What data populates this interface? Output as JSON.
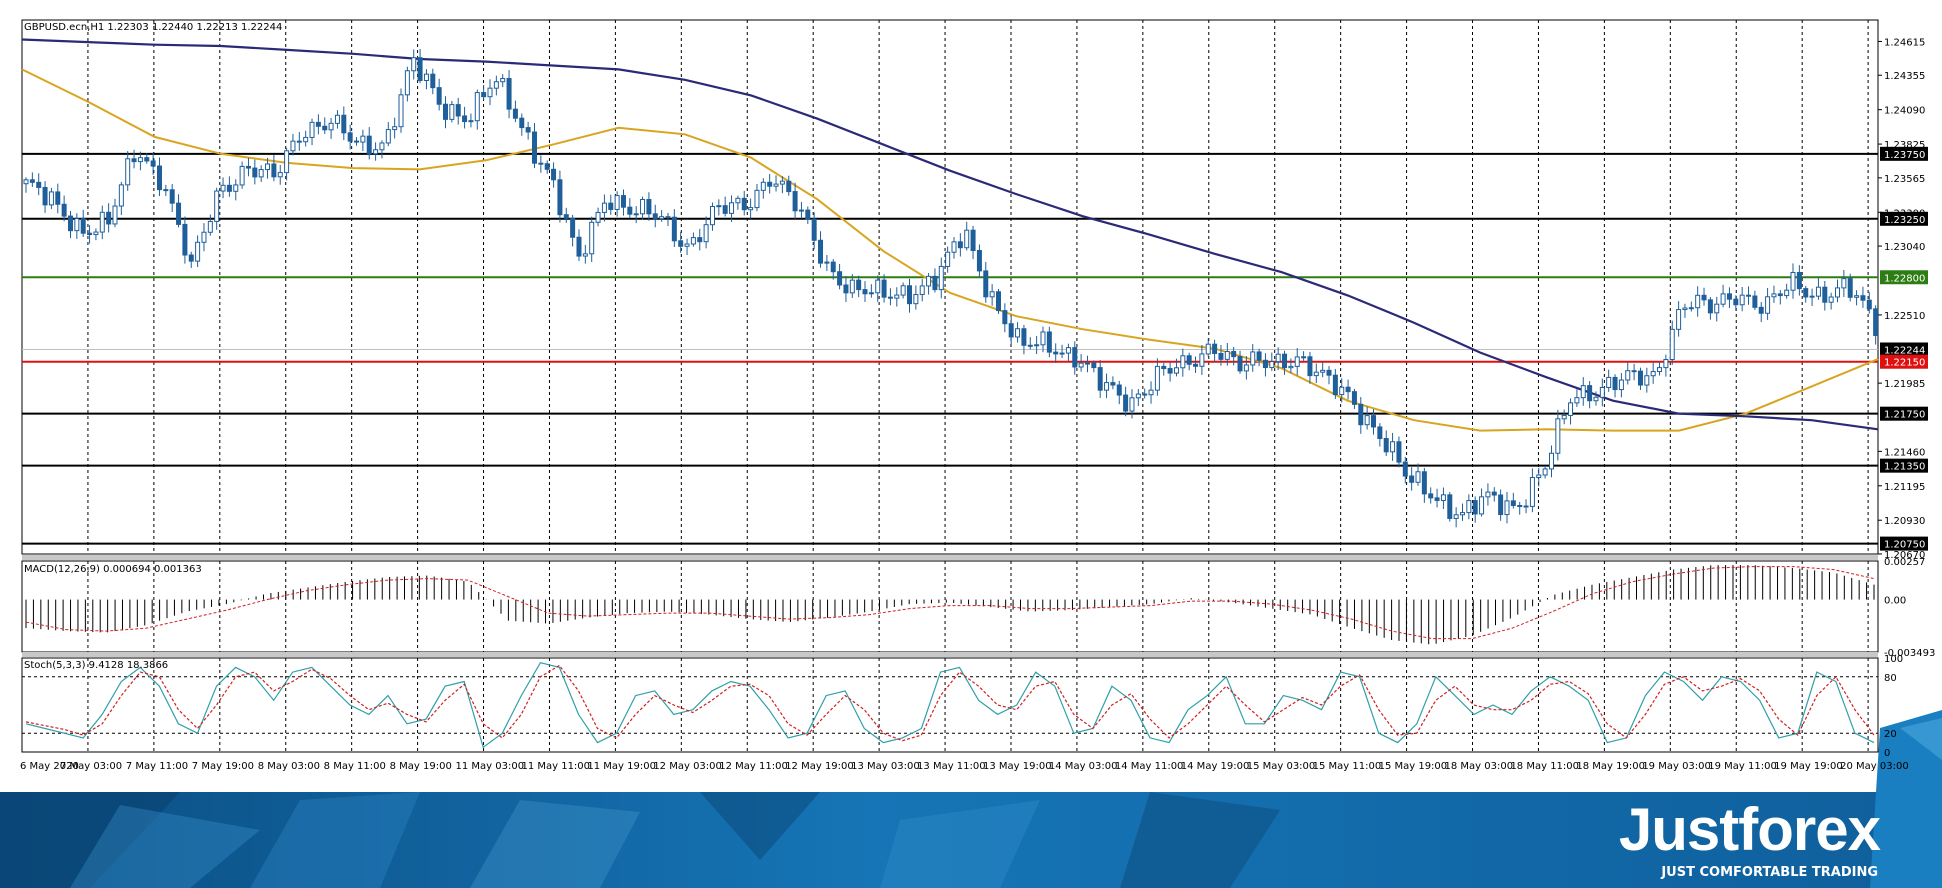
{
  "chart_data": [
    {
      "panel": "price",
      "type": "candlestick",
      "title": "GBPUSD.ecn,H1",
      "ohlc_header": [
        "1.22303",
        "1.22440",
        "1.22213",
        "1.22244"
      ],
      "ylim": [
        1.2067,
        1.2478
      ],
      "y_ticks": [
        "1.24615",
        "1.24355",
        "1.24090",
        "1.23825",
        "1.23565",
        "1.23300",
        "1.23040",
        "1.22510",
        "1.21985",
        "1.21460",
        "1.21195",
        "1.20930",
        "1.20670"
      ],
      "levels": [
        {
          "label": "1.23750",
          "value": 1.2375,
          "color": "#000000"
        },
        {
          "label": "1.23250",
          "value": 1.2325,
          "color": "#000000"
        },
        {
          "label": "1.22800",
          "value": 1.228,
          "color": "#2e7d14"
        },
        {
          "label": "1.22150",
          "value": 1.2215,
          "color": "#e01010"
        },
        {
          "label": "1.21750",
          "value": 1.2175,
          "color": "#000000"
        },
        {
          "label": "1.21350",
          "value": 1.2135,
          "color": "#000000"
        },
        {
          "label": "1.20750",
          "value": 1.2075,
          "color": "#000000"
        }
      ],
      "bid_line": {
        "label": "1.22244",
        "value": 1.22244,
        "color": "#c0c0c0"
      },
      "x_labels": [
        "6 May 2020",
        "7 May 03:00",
        "7 May 11:00",
        "7 May 19:00",
        "8 May 03:00",
        "8 May 11:00",
        "8 May 19:00",
        "11 May 03:00",
        "11 May 11:00",
        "11 May 19:00",
        "12 May 03:00",
        "12 May 11:00",
        "12 May 19:00",
        "13 May 03:00",
        "13 May 11:00",
        "13 May 19:00",
        "14 May 03:00",
        "14 May 11:00",
        "14 May 19:00",
        "15 May 03:00",
        "15 May 11:00",
        "15 May 19:00",
        "18 May 03:00",
        "18 May 11:00",
        "18 May 19:00",
        "19 May 03:00",
        "19 May 11:00",
        "19 May 19:00",
        "20 May 03:00"
      ],
      "close_path": [
        1.2352,
        1.2335,
        1.2318,
        1.2322,
        1.2378,
        1.2355,
        1.2285,
        1.2348,
        1.2365,
        1.2355,
        1.2395,
        1.24,
        1.238,
        1.2385,
        1.2445,
        1.2412,
        1.2405,
        1.243,
        1.2395,
        1.2358,
        1.229,
        1.2345,
        1.233,
        1.2325,
        1.2305,
        1.233,
        1.2335,
        1.236,
        1.233,
        1.229,
        1.227,
        1.2265,
        1.227,
        1.2278,
        1.2315,
        1.2265,
        1.2225,
        1.223,
        1.222,
        1.2195,
        1.2185,
        1.2205,
        1.221,
        1.223,
        1.221,
        1.2215,
        1.222,
        1.22,
        1.2188,
        1.216,
        1.2125,
        1.2115,
        1.2095,
        1.211,
        1.2105,
        1.213,
        1.219,
        1.2195,
        1.22,
        1.2205,
        1.226,
        1.2255,
        1.227,
        1.2255,
        1.2275,
        1.2268,
        1.227,
        1.2245
      ],
      "series": [
        {
          "name": "",
          "color": "#d9a420",
          "values": [
            1.244,
            1.2415,
            1.2388,
            1.2375,
            1.2368,
            1.2364,
            1.2363,
            1.237,
            1.2382,
            1.2395,
            1.239,
            1.2372,
            1.234,
            1.23,
            1.2268,
            1.225,
            1.224,
            1.2232,
            1.2225,
            1.221,
            1.2185,
            1.217,
            1.2162,
            1.2163,
            1.2162,
            1.2162,
            1.2175,
            1.2196,
            1.2217
          ]
        },
        {
          "name": "",
          "color": "#2a2a78",
          "values": [
            1.2463,
            1.2461,
            1.2459,
            1.2458,
            1.2455,
            1.2452,
            1.2448,
            1.2446,
            1.2443,
            1.244,
            1.2432,
            1.242,
            1.2402,
            1.2382,
            1.2362,
            1.2344,
            1.2327,
            1.2313,
            1.2298,
            1.2284,
            1.2266,
            1.2245,
            1.2222,
            1.2203,
            1.2185,
            1.2175,
            1.2173,
            1.217,
            1.2163
          ]
        }
      ]
    },
    {
      "panel": "macd",
      "type": "bar",
      "title": "MACD(12,26,9) 0.000694 0.001363",
      "ylim": [
        -0.003493,
        0.00257
      ],
      "y_ticks": [
        "0.00257",
        "0.00",
        "-0.003493"
      ],
      "values": [
        -0.0019,
        -0.0021,
        -0.0022,
        -0.0017,
        -0.0008,
        -0.0003,
        0.0004,
        0.0008,
        0.0012,
        0.0015,
        0.0016,
        0.0012,
        -0.0014,
        -0.0016,
        -0.0012,
        -0.0009,
        -0.0008,
        -0.001,
        -0.0013,
        -0.0015,
        -0.0012,
        -0.0008,
        -0.0003,
        -0.0002,
        -0.0005,
        -0.0008,
        -0.0007,
        -0.0005,
        -0.0003,
        0.0001,
        -0.0002,
        -0.0006,
        -0.001,
        -0.0019,
        -0.0027,
        -0.003,
        -0.0024,
        -0.0012,
        0.0003,
        0.001,
        0.0015,
        0.002,
        0.0023,
        0.0023,
        0.0021,
        0.0018,
        0.001
      ],
      "signal": [
        -0.0015,
        -0.002,
        -0.0021,
        -0.0019,
        -0.0013,
        -0.0007,
        0.0,
        0.0006,
        0.001,
        0.0013,
        0.0014,
        0.0013,
        0.0002,
        -0.0009,
        -0.0011,
        -0.001,
        -0.0009,
        -0.0009,
        -0.0011,
        -0.0013,
        -0.0012,
        -0.001,
        -0.0006,
        -0.0004,
        -0.0004,
        -0.0006,
        -0.0006,
        -0.0005,
        -0.0004,
        -0.0001,
        -0.0001,
        -0.0003,
        -0.0007,
        -0.0013,
        -0.0021,
        -0.0026,
        -0.0026,
        -0.0019,
        -0.0008,
        0.0004,
        0.0012,
        0.0017,
        0.0021,
        0.0022,
        0.0022,
        0.002,
        0.0014
      ]
    },
    {
      "panel": "stochastic",
      "type": "line",
      "title": "Stoch(5,3,3) 9.4128 18.3866",
      "ylim": [
        0,
        100
      ],
      "y_ticks": [
        "100",
        "80",
        "20",
        "0"
      ],
      "levels": [
        80,
        20
      ],
      "series": [
        {
          "name": "",
          "color": "#2fa0a8",
          "values": [
            30,
            25,
            20,
            15,
            40,
            75,
            90,
            70,
            30,
            20,
            70,
            90,
            80,
            55,
            85,
            90,
            70,
            50,
            40,
            60,
            30,
            35,
            70,
            75,
            5,
            20,
            60,
            95,
            90,
            40,
            10,
            20,
            60,
            65,
            40,
            45,
            65,
            75,
            70,
            45,
            15,
            20,
            60,
            65,
            25,
            10,
            15,
            25,
            85,
            90,
            55,
            40,
            50,
            85,
            70,
            20,
            25,
            70,
            55,
            15,
            10,
            45,
            60,
            80,
            30,
            30,
            60,
            55,
            45,
            85,
            80,
            20,
            10,
            30,
            80,
            60,
            40,
            50,
            40,
            65,
            80,
            70,
            55,
            10,
            15,
            60,
            85,
            75,
            55,
            80,
            75,
            55,
            15,
            20,
            85,
            75,
            20,
            10
          ]
        },
        {
          "name": "",
          "color": "#d02020",
          "values": [
            32,
            28,
            24,
            18,
            30,
            60,
            85,
            80,
            45,
            25,
            50,
            80,
            85,
            65,
            75,
            88,
            78,
            60,
            45,
            52,
            40,
            32,
            55,
            72,
            30,
            15,
            40,
            80,
            92,
            65,
            25,
            15,
            40,
            60,
            50,
            42,
            55,
            70,
            72,
            60,
            30,
            18,
            40,
            60,
            45,
            20,
            12,
            18,
            60,
            85,
            70,
            50,
            45,
            70,
            75,
            40,
            25,
            50,
            62,
            35,
            15,
            30,
            50,
            70,
            50,
            32,
            45,
            58,
            50,
            70,
            82,
            45,
            18,
            20,
            55,
            70,
            50,
            45,
            45,
            55,
            72,
            75,
            62,
            30,
            15,
            40,
            72,
            80,
            65,
            70,
            78,
            65,
            35,
            18,
            60,
            80,
            45,
            18
          ]
        }
      ]
    }
  ],
  "brand": {
    "name": "Justforex",
    "tagline": "JUST COMFORTABLE TRADING"
  },
  "colors": {
    "bull_body": "#ffffff",
    "bear_body": "#1f5f9a",
    "candle_outline": "#1f5f9a",
    "grid": "#000000",
    "banner_dark": "#0d5a92",
    "banner_light": "#1d86c7"
  }
}
